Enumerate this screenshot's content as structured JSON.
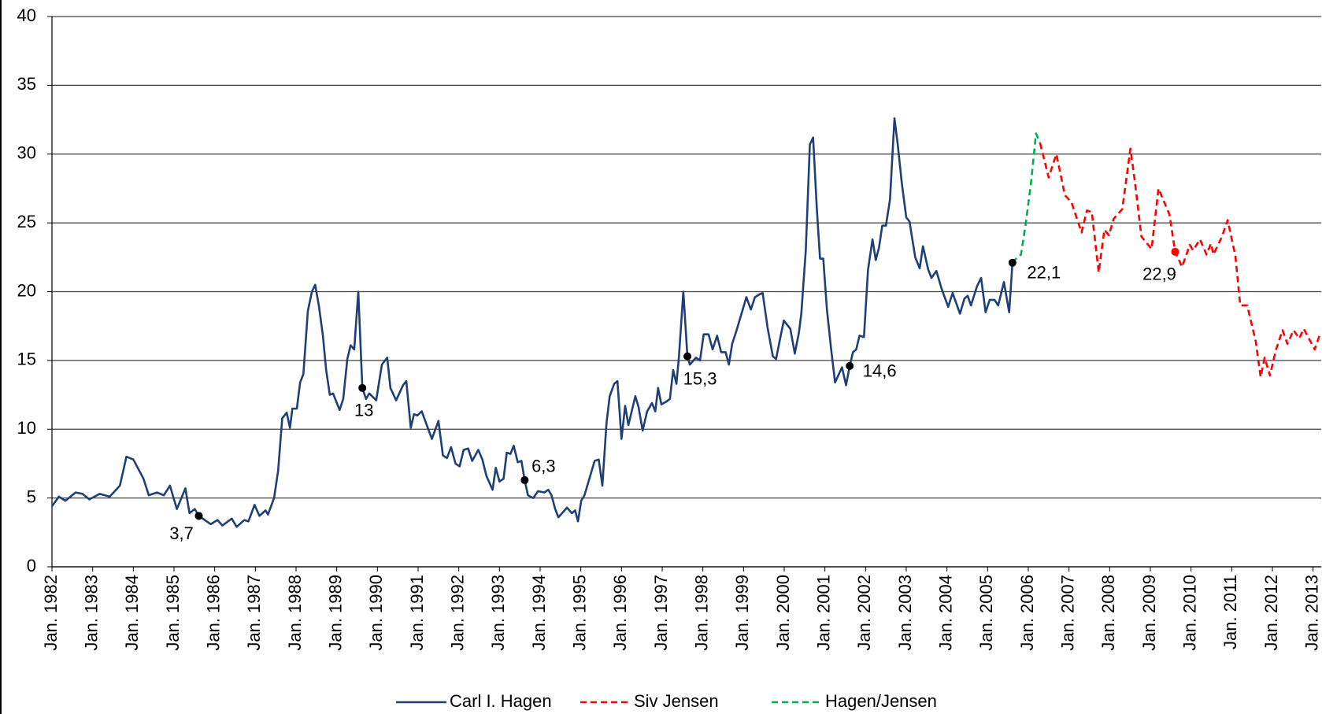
{
  "chart_data": {
    "type": "line",
    "xlim": [
      1982,
      2013.2
    ],
    "ylim": [
      0,
      40
    ],
    "yticks": [
      0,
      5,
      10,
      15,
      20,
      25,
      30,
      35,
      40
    ],
    "xticks": [
      {
        "value": 1982,
        "label": "Jan. 1982"
      },
      {
        "value": 1983,
        "label": "Jan. 1983"
      },
      {
        "value": 1984,
        "label": "Jan. 1984"
      },
      {
        "value": 1985,
        "label": "Jan. 1985"
      },
      {
        "value": 1986,
        "label": "Jan. 1986"
      },
      {
        "value": 1987,
        "label": "Jan. 1987"
      },
      {
        "value": 1988,
        "label": "Jan. 1988"
      },
      {
        "value": 1989,
        "label": "Jan. 1989"
      },
      {
        "value": 1990,
        "label": "Jan. 1990"
      },
      {
        "value": 1991,
        "label": "Jan. 1991"
      },
      {
        "value": 1992,
        "label": "Jan. 1992"
      },
      {
        "value": 1993,
        "label": "Jan. 1993"
      },
      {
        "value": 1994,
        "label": "Jan. 1994"
      },
      {
        "value": 1995,
        "label": "Jan. 1995"
      },
      {
        "value": 1996,
        "label": "Jan. 1996"
      },
      {
        "value": 1997,
        "label": "Jan. 1997"
      },
      {
        "value": 1998,
        "label": "Jan. 1998"
      },
      {
        "value": 1999,
        "label": "Jan. 1999"
      },
      {
        "value": 2000,
        "label": "Jan. 2000"
      },
      {
        "value": 2001,
        "label": "Jan. 2001"
      },
      {
        "value": 2002,
        "label": "Jan. 2002"
      },
      {
        "value": 2003,
        "label": "Jan. 2003"
      },
      {
        "value": 2004,
        "label": "Jan. 2004"
      },
      {
        "value": 2005,
        "label": "Jan. 2005"
      },
      {
        "value": 2006,
        "label": "Jan. 2006"
      },
      {
        "value": 2007,
        "label": "Jan. 2007"
      },
      {
        "value": 2008,
        "label": "Jan. 2008"
      },
      {
        "value": 2009,
        "label": "Jan. 2009"
      },
      {
        "value": 2010,
        "label": "Jan. 2010"
      },
      {
        "value": 2011,
        "label": "Jan. 2011"
      },
      {
        "value": 2012,
        "label": "Jan. 2012"
      },
      {
        "value": 2013,
        "label": "Jan. 2013"
      }
    ],
    "grid": true,
    "legend": "bottom",
    "series": [
      {
        "name": "Carl I. Hagen",
        "color": "#1f3f77",
        "linestyle": "solid",
        "x": [
          1982.0,
          1982.17,
          1982.33,
          1982.58,
          1982.75,
          1982.92,
          1983.17,
          1983.42,
          1983.67,
          1983.83,
          1984.0,
          1984.25,
          1984.38,
          1984.58,
          1984.75,
          1984.9,
          1985.07,
          1985.28,
          1985.38,
          1985.51,
          1985.61,
          1985.9,
          1986.07,
          1986.19,
          1986.42,
          1986.54,
          1986.73,
          1986.83,
          1986.98,
          1987.1,
          1987.25,
          1987.31,
          1987.46,
          1987.56,
          1987.66,
          1987.77,
          1987.85,
          1987.91,
          1988.02,
          1988.1,
          1988.18,
          1988.29,
          1988.39,
          1988.47,
          1988.56,
          1988.66,
          1988.74,
          1988.83,
          1988.91,
          1989.07,
          1989.16,
          1989.26,
          1989.34,
          1989.43,
          1989.53,
          1989.63,
          1989.72,
          1989.8,
          1989.97,
          1990.11,
          1990.24,
          1990.32,
          1990.46,
          1990.63,
          1990.71,
          1990.82,
          1990.9,
          1990.98,
          1991.09,
          1991.25,
          1991.34,
          1991.5,
          1991.61,
          1991.71,
          1991.81,
          1991.92,
          1992.02,
          1992.12,
          1992.23,
          1992.33,
          1992.48,
          1992.58,
          1992.68,
          1992.83,
          1992.91,
          1993.0,
          1993.1,
          1993.18,
          1993.27,
          1993.35,
          1993.45,
          1993.54,
          1993.62,
          1993.7,
          1993.83,
          1993.95,
          1994.1,
          1994.2,
          1994.28,
          1994.37,
          1994.45,
          1994.57,
          1994.66,
          1994.78,
          1994.86,
          1994.93,
          1995.01,
          1995.09,
          1995.2,
          1995.34,
          1995.44,
          1995.53,
          1995.63,
          1995.71,
          1995.82,
          1995.9,
          1996.0,
          1996.09,
          1996.17,
          1996.34,
          1996.42,
          1996.52,
          1996.63,
          1996.75,
          1996.83,
          1996.9,
          1996.98,
          1997.1,
          1997.19,
          1997.27,
          1997.35,
          1997.41,
          1997.52,
          1997.62,
          1997.68,
          1997.83,
          1997.93,
          1998.02,
          1998.14,
          1998.24,
          1998.35,
          1998.45,
          1998.56,
          1998.64,
          1998.72,
          1998.83,
          1999.07,
          1999.18,
          1999.28,
          1999.39,
          1999.47,
          1999.59,
          1999.72,
          1999.8,
          1999.9,
          1999.99,
          2000.15,
          2000.26,
          2000.36,
          2000.42,
          2000.53,
          2000.63,
          2000.71,
          2000.8,
          2000.88,
          2000.96,
          2001.05,
          2001.15,
          2001.25,
          2001.42,
          2001.52,
          2001.61,
          2001.69,
          2001.77,
          2001.85,
          2001.96,
          2002.06,
          2002.17,
          2002.25,
          2002.33,
          2002.41,
          2002.5,
          2002.6,
          2002.71,
          2002.79,
          2002.89,
          2003.0,
          2003.08,
          2003.22,
          2003.33,
          2003.41,
          2003.54,
          2003.62,
          2003.74,
          2003.87,
          2004.03,
          2004.14,
          2004.32,
          2004.43,
          2004.51,
          2004.59,
          2004.74,
          2004.84,
          2004.95,
          2005.05,
          2005.17,
          2005.26,
          2005.4,
          2005.53,
          2005.61
        ],
        "values": [
          4.4,
          5.1,
          4.8,
          5.4,
          5.3,
          4.9,
          5.3,
          5.1,
          5.9,
          8.0,
          7.8,
          6.4,
          5.2,
          5.4,
          5.2,
          5.9,
          4.2,
          5.7,
          3.9,
          4.2,
          3.7,
          3.1,
          3.4,
          3.0,
          3.5,
          2.9,
          3.4,
          3.3,
          4.5,
          3.7,
          4.1,
          3.8,
          5.0,
          7.0,
          10.8,
          11.2,
          10.1,
          11.5,
          11.5,
          13.4,
          14.0,
          18.6,
          20.0,
          20.5,
          19.0,
          16.8,
          14.3,
          12.5,
          12.6,
          11.4,
          12.2,
          15.1,
          16.1,
          15.8,
          20.0,
          13.0,
          12.2,
          12.6,
          12.1,
          14.7,
          15.2,
          13.0,
          12.1,
          13.2,
          13.5,
          10.1,
          11.1,
          11.0,
          11.3,
          10.0,
          9.3,
          10.6,
          8.1,
          7.9,
          8.7,
          7.5,
          7.3,
          8.5,
          8.6,
          7.7,
          8.5,
          7.8,
          6.6,
          5.6,
          7.2,
          6.2,
          6.4,
          8.3,
          8.2,
          8.8,
          7.6,
          7.7,
          6.3,
          5.2,
          5.0,
          5.5,
          5.4,
          5.6,
          5.2,
          4.2,
          3.6,
          4.0,
          4.3,
          3.9,
          4.1,
          3.3,
          4.8,
          5.2,
          6.3,
          7.7,
          7.8,
          5.9,
          10.4,
          12.4,
          13.3,
          13.5,
          9.3,
          11.7,
          10.3,
          12.4,
          11.6,
          9.9,
          11.3,
          11.9,
          11.3,
          13.0,
          11.8,
          12.0,
          12.2,
          14.3,
          13.3,
          15.2,
          20.0,
          15.3,
          14.7,
          15.2,
          15.0,
          16.9,
          16.9,
          15.8,
          16.8,
          15.6,
          15.6,
          14.7,
          16.2,
          17.2,
          19.6,
          18.7,
          19.6,
          19.8,
          19.9,
          17.4,
          15.3,
          15.1,
          16.6,
          17.9,
          17.3,
          15.5,
          17.0,
          18.4,
          23.0,
          30.7,
          31.2,
          26.1,
          22.4,
          22.4,
          18.7,
          15.9,
          13.4,
          14.5,
          13.2,
          14.6,
          15.6,
          15.8,
          16.8,
          16.7,
          21.6,
          23.8,
          22.3,
          23.2,
          24.8,
          24.8,
          26.7,
          32.6,
          30.7,
          27.9,
          25.4,
          25.1,
          22.5,
          21.7,
          23.3,
          21.6,
          21.0,
          21.5,
          20.2,
          18.9,
          19.9,
          18.4,
          19.5,
          19.7,
          19.0,
          20.4,
          21.0,
          18.5,
          19.4,
          19.4,
          19.0,
          20.7,
          18.5,
          22.1
        ]
      },
      {
        "name": "Siv Jensen",
        "color": "#ff0000",
        "linestyle": "dashed",
        "x": [
          2006.29,
          2006.4,
          2006.5,
          2006.69,
          2006.9,
          2007.06,
          2007.31,
          2007.44,
          2007.56,
          2007.73,
          2007.87,
          2007.98,
          2008.1,
          2008.31,
          2008.51,
          2008.62,
          2008.78,
          2009.03,
          2009.2,
          2009.47,
          2009.61,
          2009.78,
          2009.97,
          2010.05,
          2010.22,
          2010.38,
          2010.49,
          2010.55,
          2010.76,
          2010.9,
          2011.09,
          2011.21,
          2011.38,
          2011.59,
          2011.71,
          2011.81,
          2011.94,
          2012.08,
          2012.25,
          2012.37,
          2012.52,
          2012.66,
          2012.77,
          2013.04,
          2013.18
        ],
        "values": [
          30.8,
          29.5,
          28.3,
          30.0,
          27.0,
          26.5,
          24.3,
          25.9,
          25.8,
          21.4,
          24.5,
          24.1,
          25.3,
          26.0,
          30.4,
          28.0,
          24.0,
          23.1,
          27.5,
          25.6,
          22.9,
          21.8,
          23.4,
          23.0,
          23.8,
          22.7,
          23.5,
          22.7,
          24.0,
          25.2,
          22.6,
          19.0,
          19.0,
          16.4,
          13.8,
          15.2,
          13.9,
          15.7,
          17.2,
          16.2,
          17.2,
          16.6,
          17.3,
          15.8,
          17.0
        ]
      },
      {
        "name": "Hagen/Jensen",
        "color": "#00b050",
        "linestyle": "dashed",
        "x": [
          2005.61,
          2005.73,
          2005.82,
          2005.94,
          2006.07,
          2006.19,
          2006.29
        ],
        "values": [
          22.1,
          22.5,
          22.7,
          25.0,
          28.0,
          31.5,
          30.8
        ]
      }
    ],
    "annotations": [
      {
        "x": 1985.61,
        "y": 3.7,
        "label": "3,7",
        "color": "#000000"
      },
      {
        "x": 1989.63,
        "y": 13,
        "label": "13",
        "color": "#000000"
      },
      {
        "x": 1993.62,
        "y": 6.3,
        "label": "6,3",
        "color": "#000000"
      },
      {
        "x": 1997.62,
        "y": 15.3,
        "label": "15,3",
        "color": "#000000"
      },
      {
        "x": 2001.61,
        "y": 14.6,
        "label": "14,6",
        "color": "#000000"
      },
      {
        "x": 2005.61,
        "y": 22.1,
        "label": "22,1",
        "color": "#000000"
      },
      {
        "x": 2009.61,
        "y": 22.9,
        "label": "22,9",
        "color": "#ff0000"
      }
    ]
  }
}
